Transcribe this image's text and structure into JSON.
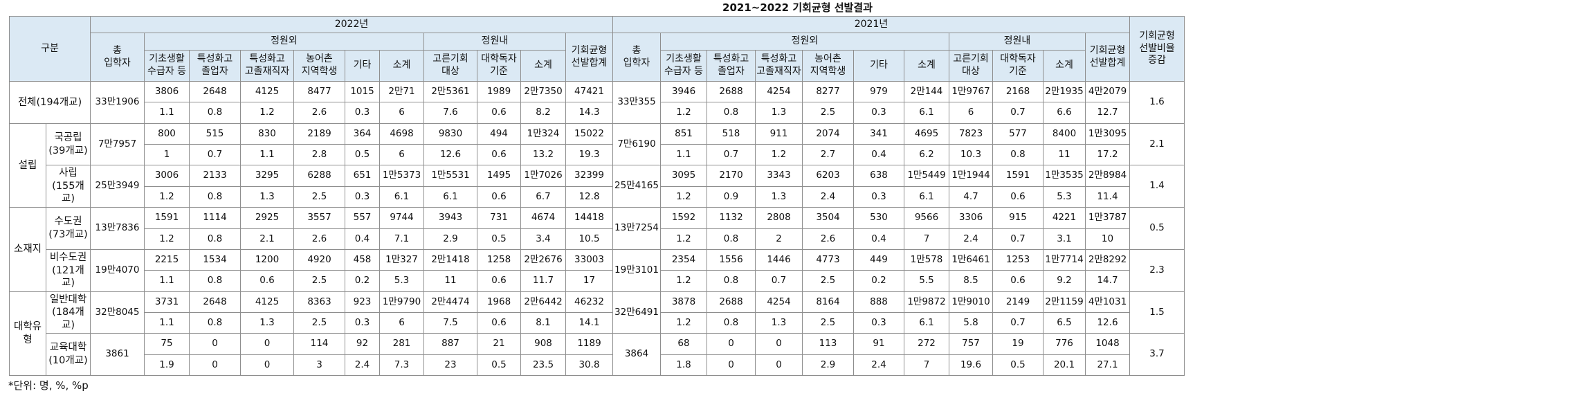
{
  "title": "2021~2022 기회균형 선발결과",
  "note": "*단위: 명, %, %p",
  "headers": {
    "gubun": "구분",
    "y2022": "2022년",
    "y2021": "2021년",
    "total_entrants": "총\n입학자",
    "jeongwonoe": "정원외",
    "jeongwonnae": "정원내",
    "sum_total": "기회균형\n선발합계",
    "ratio_change": "기회균형\n선발비율\n증감",
    "sub_out": [
      "기초생활\n수급자 등",
      "특성화고\n졸업자",
      "특성화고\n고졸재직자",
      "농어촌\n지역학생",
      "기타",
      "소계"
    ],
    "sub_in": [
      "고른기회\n대상",
      "대학독자\n기준",
      "소계"
    ]
  },
  "rows": [
    {
      "group": "전체(194개교)",
      "sub": "",
      "total_2022": "33만1906",
      "v2022": [
        "3806",
        "2648",
        "4125",
        "8477",
        "1015",
        "2만71",
        "2만5361",
        "1989",
        "2만7350",
        "47421"
      ],
      "r2022": [
        "1.1",
        "0.8",
        "1.2",
        "2.6",
        "0.3",
        "6",
        "7.6",
        "0.6",
        "8.2",
        "14.3"
      ],
      "total_2021": "33만355",
      "v2021": [
        "3946",
        "2688",
        "4254",
        "8277",
        "979",
        "2만144",
        "1만9767",
        "2168",
        "2만1935",
        "4만2079"
      ],
      "r2021": [
        "1.2",
        "0.8",
        "1.3",
        "2.5",
        "0.3",
        "6.1",
        "6",
        "0.7",
        "6.6",
        "12.7"
      ],
      "change": "1.6"
    },
    {
      "group": "설립",
      "sub": "국공립\n(39개교)",
      "total_2022": "7만7957",
      "v2022": [
        "800",
        "515",
        "830",
        "2189",
        "364",
        "4698",
        "9830",
        "494",
        "1만324",
        "15022"
      ],
      "r2022": [
        "1",
        "0.7",
        "1.1",
        "2.8",
        "0.5",
        "6",
        "12.6",
        "0.6",
        "13.2",
        "19.3"
      ],
      "total_2021": "7만6190",
      "v2021": [
        "851",
        "518",
        "911",
        "2074",
        "341",
        "4695",
        "7823",
        "577",
        "8400",
        "1만3095"
      ],
      "r2021": [
        "1.1",
        "0.7",
        "1.2",
        "2.7",
        "0.4",
        "6.2",
        "10.3",
        "0.8",
        "11",
        "17.2"
      ],
      "change": "2.1"
    },
    {
      "group": "설립",
      "sub": "사립\n(155개교)",
      "total_2022": "25만3949",
      "v2022": [
        "3006",
        "2133",
        "3295",
        "6288",
        "651",
        "1만5373",
        "1만5531",
        "1495",
        "1만7026",
        "32399"
      ],
      "r2022": [
        "1.2",
        "0.8",
        "1.3",
        "2.5",
        "0.3",
        "6.1",
        "6.1",
        "0.6",
        "6.7",
        "12.8"
      ],
      "total_2021": "25만4165",
      "v2021": [
        "3095",
        "2170",
        "3343",
        "6203",
        "638",
        "1만5449",
        "1만1944",
        "1591",
        "1만3535",
        "2만8984"
      ],
      "r2021": [
        "1.2",
        "0.9",
        "1.3",
        "2.4",
        "0.3",
        "6.1",
        "4.7",
        "0.6",
        "5.3",
        "11.4"
      ],
      "change": "1.4"
    },
    {
      "group": "소재지",
      "sub": "수도권\n(73개교)",
      "total_2022": "13만7836",
      "v2022": [
        "1591",
        "1114",
        "2925",
        "3557",
        "557",
        "9744",
        "3943",
        "731",
        "4674",
        "14418"
      ],
      "r2022": [
        "1.2",
        "0.8",
        "2.1",
        "2.6",
        "0.4",
        "7.1",
        "2.9",
        "0.5",
        "3.4",
        "10.5"
      ],
      "total_2021": "13만7254",
      "v2021": [
        "1592",
        "1132",
        "2808",
        "3504",
        "530",
        "9566",
        "3306",
        "915",
        "4221",
        "1만3787"
      ],
      "r2021": [
        "1.2",
        "0.8",
        "2",
        "2.6",
        "0.4",
        "7",
        "2.4",
        "0.7",
        "3.1",
        "10"
      ],
      "change": "0.5"
    },
    {
      "group": "소재지",
      "sub": "비수도권\n(121개교)",
      "total_2022": "19만4070",
      "v2022": [
        "2215",
        "1534",
        "1200",
        "4920",
        "458",
        "1만327",
        "2만1418",
        "1258",
        "2만2676",
        "33003"
      ],
      "r2022": [
        "1.1",
        "0.8",
        "0.6",
        "2.5",
        "0.2",
        "5.3",
        "11",
        "0.6",
        "11.7",
        "17"
      ],
      "total_2021": "19만3101",
      "v2021": [
        "2354",
        "1556",
        "1446",
        "4773",
        "449",
        "1만578",
        "1만6461",
        "1253",
        "1만7714",
        "2만8292"
      ],
      "r2021": [
        "1.2",
        "0.8",
        "0.7",
        "2.5",
        "0.2",
        "5.5",
        "8.5",
        "0.6",
        "9.2",
        "14.7"
      ],
      "change": "2.3"
    },
    {
      "group": "대학유형",
      "sub": "일반대학\n(184개교)",
      "total_2022": "32만8045",
      "v2022": [
        "3731",
        "2648",
        "4125",
        "8363",
        "923",
        "1만9790",
        "2만4474",
        "1968",
        "2만6442",
        "46232"
      ],
      "r2022": [
        "1.1",
        "0.8",
        "1.3",
        "2.5",
        "0.3",
        "6",
        "7.5",
        "0.6",
        "8.1",
        "14.1"
      ],
      "total_2021": "32만6491",
      "v2021": [
        "3878",
        "2688",
        "4254",
        "8164",
        "888",
        "1만9872",
        "1만9010",
        "2149",
        "2만1159",
        "4만1031"
      ],
      "r2021": [
        "1.2",
        "0.8",
        "1.3",
        "2.5",
        "0.3",
        "6.1",
        "5.8",
        "0.7",
        "6.5",
        "12.6"
      ],
      "change": "1.5"
    },
    {
      "group": "대학유형",
      "sub": "교육대학\n(10개교)",
      "total_2022": "3861",
      "v2022": [
        "75",
        "0",
        "0",
        "114",
        "92",
        "281",
        "887",
        "21",
        "908",
        "1189"
      ],
      "r2022": [
        "1.9",
        "0",
        "0",
        "3",
        "2.4",
        "7.3",
        "23",
        "0.5",
        "23.5",
        "30.8"
      ],
      "total_2021": "3864",
      "v2021": [
        "68",
        "0",
        "0",
        "113",
        "91",
        "272",
        "757",
        "19",
        "776",
        "1048"
      ],
      "r2021": [
        "1.8",
        "0",
        "0",
        "2.9",
        "2.4",
        "7",
        "19.6",
        "0.5",
        "20.1",
        "27.1"
      ],
      "change": "3.7"
    }
  ]
}
